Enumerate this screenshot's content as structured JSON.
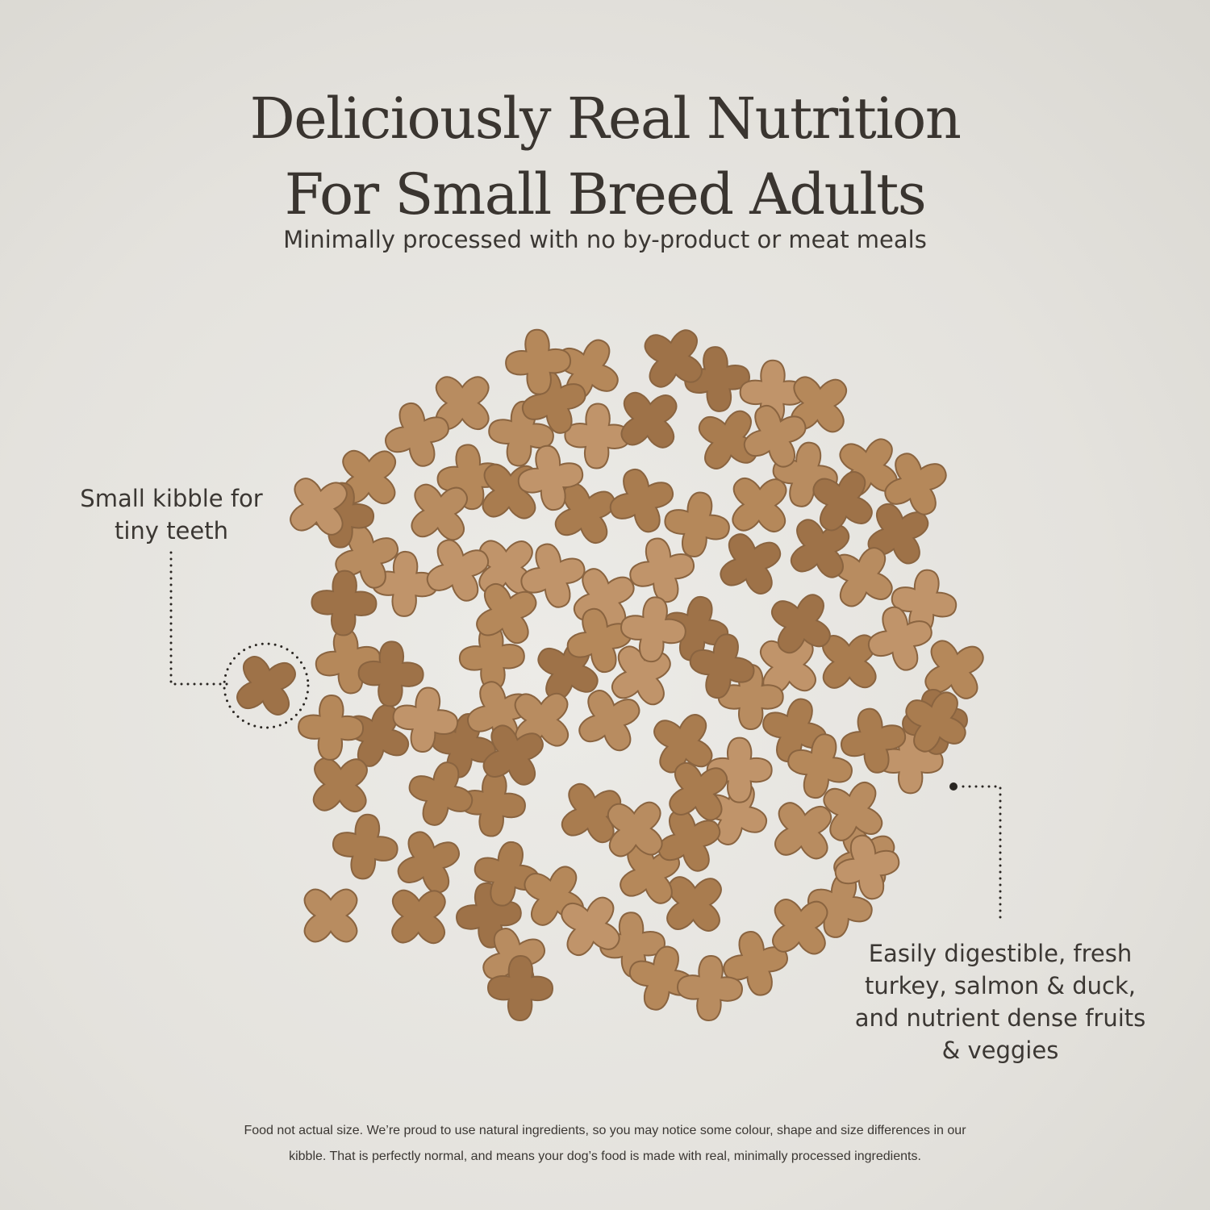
{
  "header": {
    "title_line1": "Deliciously Real Nutrition",
    "title_line2": "For Small Breed Adults",
    "subtitle": "Minimally processed with no by-product or meat meals"
  },
  "callouts": {
    "kibble_size": {
      "line1": "Small kibble for",
      "line2": "tiny teeth"
    },
    "ingredients": {
      "line1": "Easily digestible, fresh",
      "line2": "turkey, salmon & duck,",
      "line3": "and nutrient dense fruits",
      "line4": "& veggies"
    }
  },
  "footnote": {
    "line1": "Food not actual size. We’re proud to use natural ingredients, so you may notice some colour, shape and size differences in our",
    "line2": "kibble. That is perfectly normal, and means your dog’s food is made with real, minimally processed ingredients."
  },
  "colors": {
    "text": "#3b3733",
    "kibble": "#b08456",
    "kibble_dark": "#8f6640",
    "background": "#e6e4df"
  }
}
